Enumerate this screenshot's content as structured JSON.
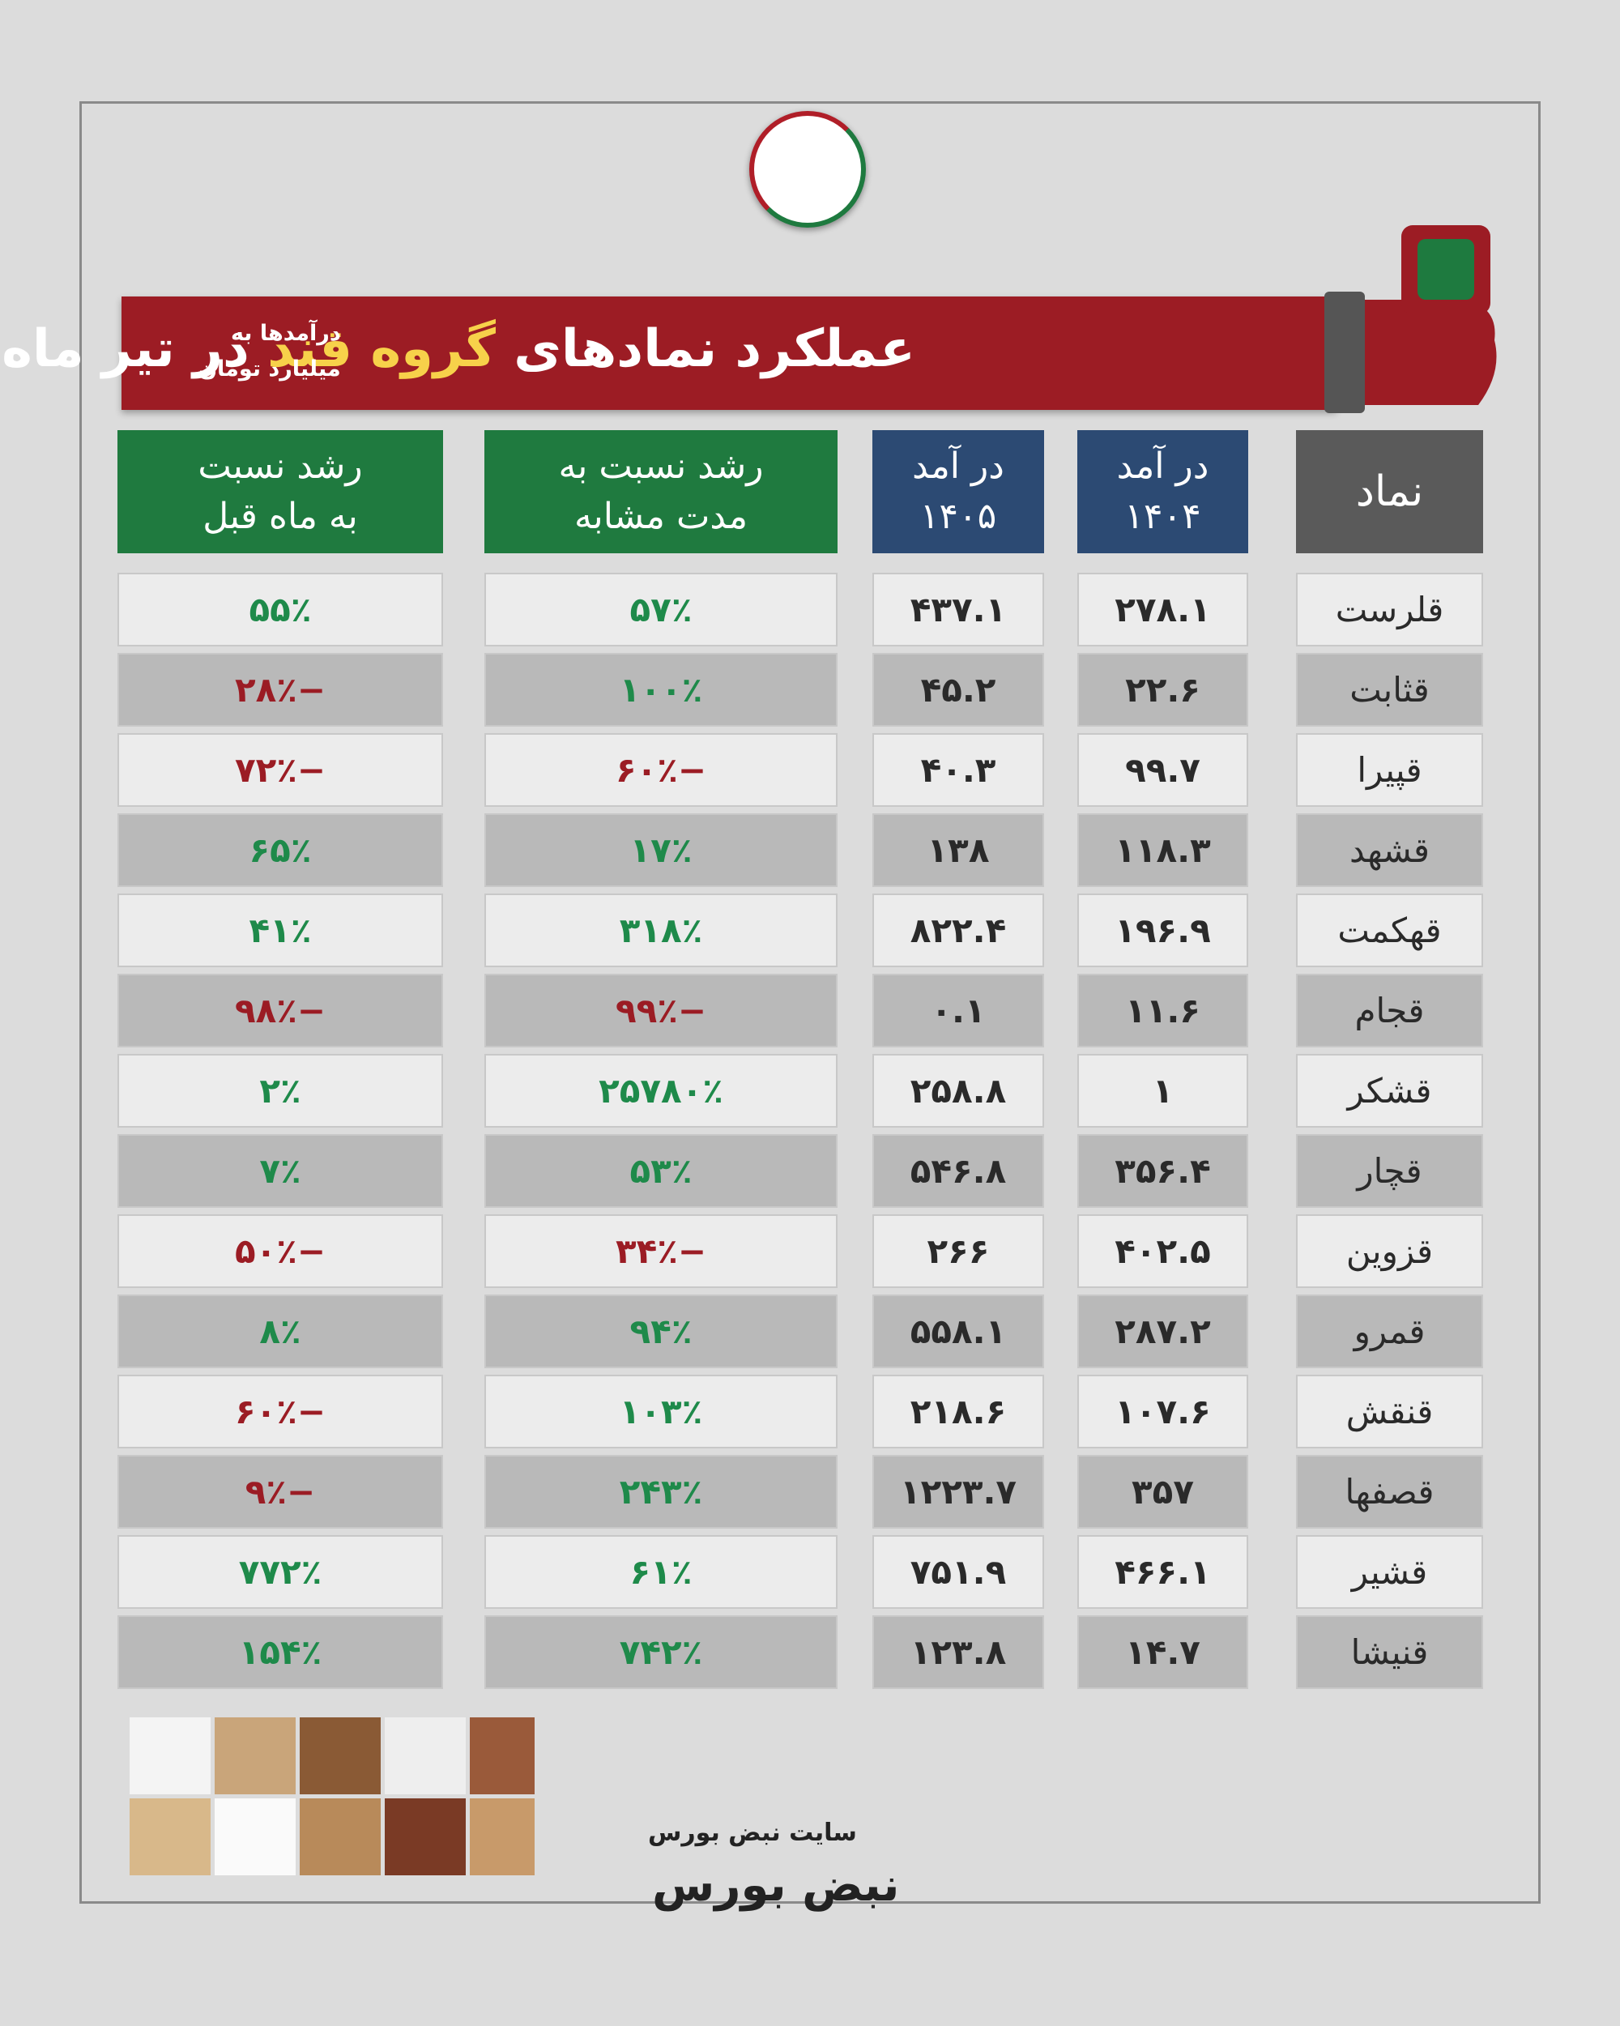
{
  "header": {
    "title_parts": [
      "عملکرد نمادهای",
      "گروه قند",
      "در تیر ماه"
    ],
    "note": [
      "درآمدها به",
      "میلیارد تومان"
    ]
  },
  "table": {
    "columns": [
      [
        "نماد"
      ],
      [
        "در آمد",
        "۱۴۰۴"
      ],
      [
        "در آمد",
        "۱۴۰۵"
      ],
      [
        "رشد نسبت به",
        "مدت مشابه"
      ],
      [
        "رشد نسبت",
        "به ماه قبل"
      ]
    ],
    "rows": [
      [
        "قلرست",
        "۲۷۸.۱",
        "۴۳۷.۱",
        "۵۷٪",
        "۵۵٪"
      ],
      [
        "قثابت",
        "۲۲.۶",
        "۴۵.۲",
        "۱۰۰٪",
        "−۲۸٪"
      ],
      [
        "قپیرا",
        "۹۹.۷",
        "۴۰.۳",
        "−۶۰٪",
        "−۷۲٪"
      ],
      [
        "قشهد",
        "۱۱۸.۳",
        "۱۳۸",
        "۱۷٪",
        "۶۵٪"
      ],
      [
        "قهکمت",
        "۱۹۶.۹",
        "۸۲۲.۴",
        "۳۱۸٪",
        "۴۱٪"
      ],
      [
        "قجام",
        "۱۱.۶",
        "۰.۱",
        "−۹۹٪",
        "−۹۸٪"
      ],
      [
        "قشکر",
        "۱",
        "۲۵۸.۸",
        "۲۵۷۸۰٪",
        "۲٪"
      ],
      [
        "قچار",
        "۳۵۶.۴",
        "۵۴۶.۸",
        "۵۳٪",
        "۷٪"
      ],
      [
        "قزوین",
        "۴۰۲.۵",
        "۲۶۶",
        "−۳۴٪",
        "−۵۰٪"
      ],
      [
        "قمرو",
        "۲۸۷.۲",
        "۵۵۸.۱",
        "۹۴٪",
        "۸٪"
      ],
      [
        "قنقش",
        "۱۰۷.۶",
        "۲۱۸.۶",
        "۱۰۳٪",
        "−۶۰٪"
      ],
      [
        "قصفها",
        "۳۵۷",
        "۱۲۲۳.۷",
        "۲۴۳٪",
        "−۹٪"
      ],
      [
        "قشیر",
        "۴۶۶.۱",
        "۷۵۱.۹",
        "۶۱٪",
        "۷۷۲٪"
      ],
      [
        "قنیشا",
        "۱۴.۷",
        "۱۲۳.۸",
        "۷۴۲٪",
        "۱۵۴٪"
      ]
    ]
  },
  "footer": {
    "site": "سایت نبض بورس",
    "brand": "نبض بورس"
  }
}
